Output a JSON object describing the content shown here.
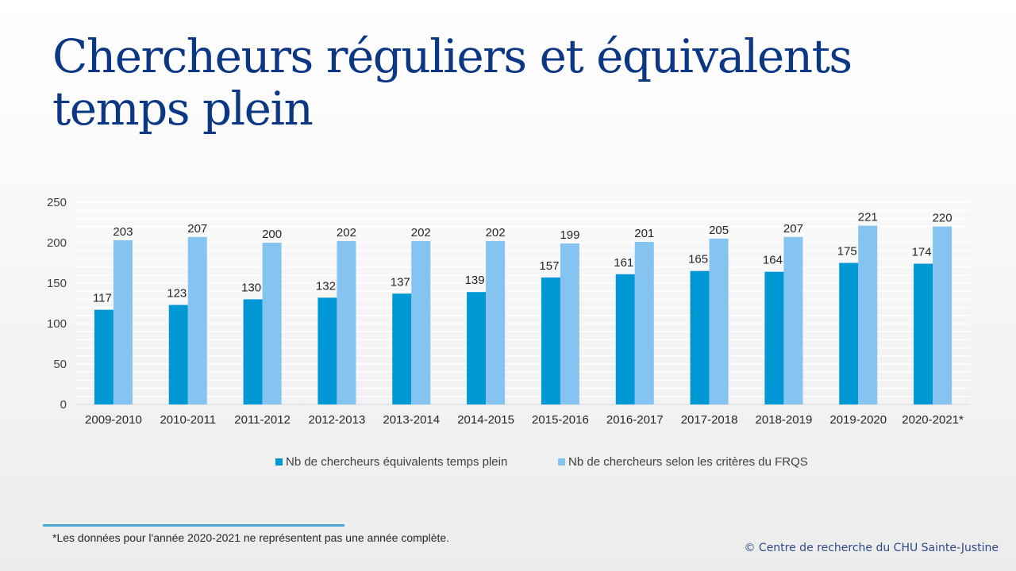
{
  "title": "Chercheurs réguliers et équivalents temps plein",
  "colors": {
    "series1": "#0098d4",
    "series2": "#85c3f0",
    "title": "#0b3784",
    "rule": "#4aa9d4"
  },
  "chart_data": {
    "type": "bar",
    "title": "Chercheurs réguliers et équivalents temps plein",
    "xlabel": "",
    "ylabel": "",
    "ylim": [
      0,
      250
    ],
    "yticks": [
      0,
      50,
      100,
      150,
      200,
      250
    ],
    "grid": true,
    "legend_position": "bottom",
    "categories": [
      "2009-2010",
      "2010-2011",
      "2011-2012",
      "2012-2013",
      "2013-2014",
      "2014-2015",
      "2015-2016",
      "2016-2017",
      "2017-2018",
      "2018-2019",
      "2019-2020",
      "2020-2021*"
    ],
    "series": [
      {
        "name": "Nb de chercheurs équivalents temps plein",
        "color": "#0098d4",
        "values": [
          117,
          123,
          130,
          132,
          137,
          139,
          157,
          161,
          165,
          164,
          175,
          174
        ]
      },
      {
        "name": "Nb de chercheurs selon les critères du FRQS",
        "color": "#85c3f0",
        "values": [
          203,
          207,
          200,
          202,
          202,
          202,
          199,
          201,
          205,
          207,
          221,
          220
        ]
      }
    ]
  },
  "footnote": "*Les données pour l'année 2020-2021 ne représentent pas une année complète.",
  "copyright": "© Centre de recherche du CHU Sainte-Justine"
}
